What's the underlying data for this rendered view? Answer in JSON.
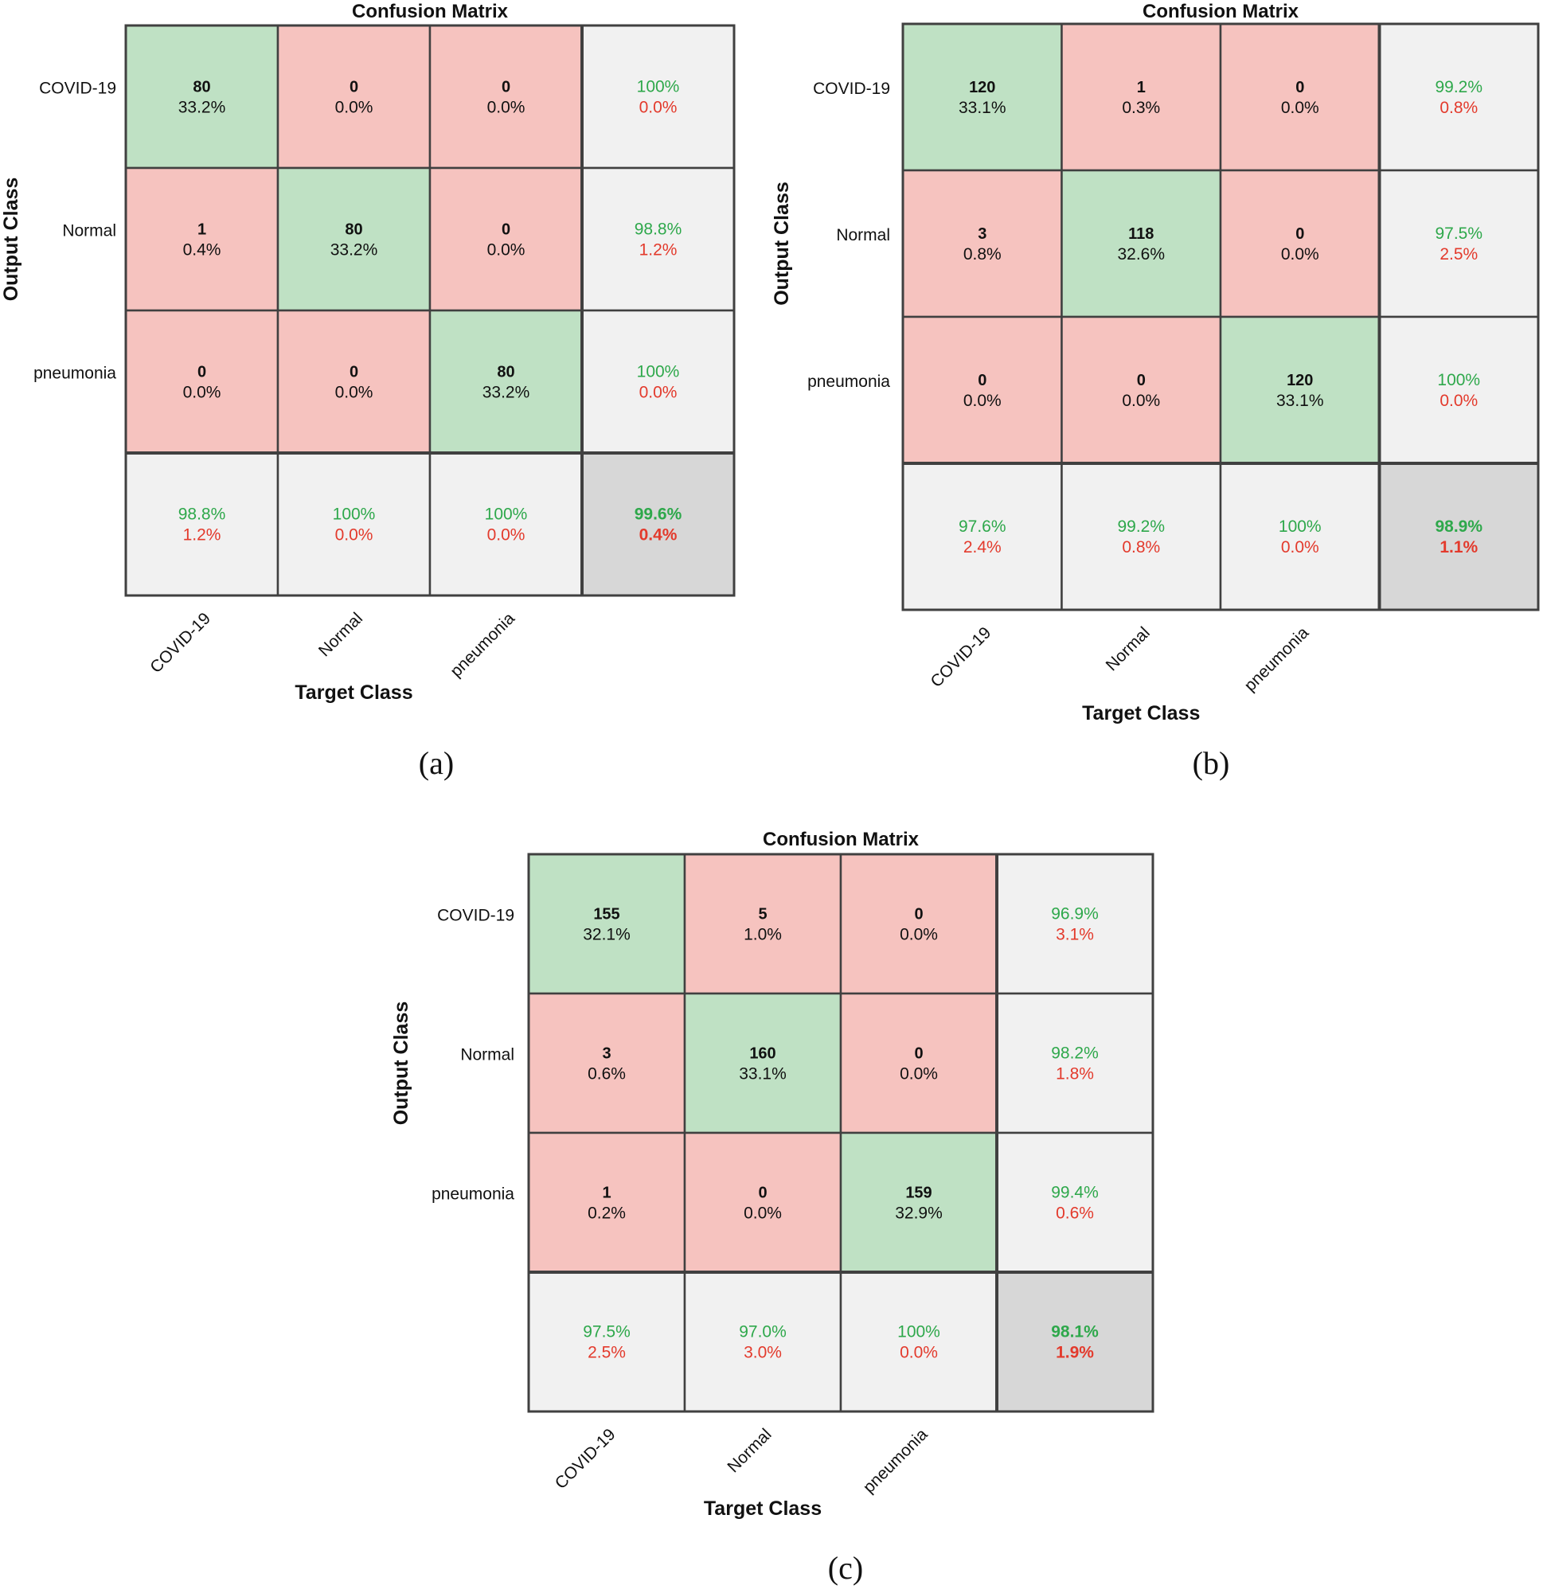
{
  "colors": {
    "correct": "#bfe1c4",
    "wrong": "#f6c3bf",
    "summary": "#f1f1f1",
    "overall": "#d7d7d7",
    "good_text": "#2ea84b",
    "bad_text": "#e33a2c",
    "grid": "#404040"
  },
  "chart_data": [
    {
      "type": "heatmap",
      "caption": "(a)",
      "title": "Confusion Matrix",
      "xlabel": "Target Class",
      "ylabel": "Output Class",
      "classes": [
        "COVID-19",
        "Normal",
        "pneumonia"
      ],
      "matrix": [
        {
          "counts": [
            "80",
            "0",
            "0"
          ],
          "percents": [
            "33.2%",
            "0.0%",
            "0.0%"
          ],
          "row_good": "100%",
          "row_bad": "0.0%"
        },
        {
          "counts": [
            "1",
            "80",
            "0"
          ],
          "percents": [
            "0.4%",
            "33.2%",
            "0.0%"
          ],
          "row_good": "98.8%",
          "row_bad": "1.2%"
        },
        {
          "counts": [
            "0",
            "0",
            "80"
          ],
          "percents": [
            "0.0%",
            "0.0%",
            "33.2%"
          ],
          "row_good": "100%",
          "row_bad": "0.0%"
        }
      ],
      "col_good": [
        "98.8%",
        "100%",
        "100%"
      ],
      "col_bad": [
        "1.2%",
        "0.0%",
        "0.0%"
      ],
      "overall_good": "99.6%",
      "overall_bad": "0.4%"
    },
    {
      "type": "heatmap",
      "caption": "(b)",
      "title": "Confusion Matrix",
      "xlabel": "Target Class",
      "ylabel": "Output Class",
      "classes": [
        "COVID-19",
        "Normal",
        "pneumonia"
      ],
      "matrix": [
        {
          "counts": [
            "120",
            "1",
            "0"
          ],
          "percents": [
            "33.1%",
            "0.3%",
            "0.0%"
          ],
          "row_good": "99.2%",
          "row_bad": "0.8%"
        },
        {
          "counts": [
            "3",
            "118",
            "0"
          ],
          "percents": [
            "0.8%",
            "32.6%",
            "0.0%"
          ],
          "row_good": "97.5%",
          "row_bad": "2.5%"
        },
        {
          "counts": [
            "0",
            "0",
            "120"
          ],
          "percents": [
            "0.0%",
            "0.0%",
            "33.1%"
          ],
          "row_good": "100%",
          "row_bad": "0.0%"
        }
      ],
      "col_good": [
        "97.6%",
        "99.2%",
        "100%"
      ],
      "col_bad": [
        "2.4%",
        "0.8%",
        "0.0%"
      ],
      "overall_good": "98.9%",
      "overall_bad": "1.1%"
    },
    {
      "type": "heatmap",
      "caption": "(c)",
      "title": "Confusion Matrix",
      "xlabel": "Target Class",
      "ylabel": "Output Class",
      "classes": [
        "COVID-19",
        "Normal",
        "pneumonia"
      ],
      "matrix": [
        {
          "counts": [
            "155",
            "5",
            "0"
          ],
          "percents": [
            "32.1%",
            "1.0%",
            "0.0%"
          ],
          "row_good": "96.9%",
          "row_bad": "3.1%"
        },
        {
          "counts": [
            "3",
            "160",
            "0"
          ],
          "percents": [
            "0.6%",
            "33.1%",
            "0.0%"
          ],
          "row_good": "98.2%",
          "row_bad": "1.8%"
        },
        {
          "counts": [
            "1",
            "0",
            "159"
          ],
          "percents": [
            "0.2%",
            "0.0%",
            "32.9%"
          ],
          "row_good": "99.4%",
          "row_bad": "0.6%"
        }
      ],
      "col_good": [
        "97.5%",
        "97.0%",
        "100%"
      ],
      "col_bad": [
        "2.5%",
        "3.0%",
        "0.0%"
      ],
      "overall_good": "98.1%",
      "overall_bad": "1.9%"
    }
  ]
}
